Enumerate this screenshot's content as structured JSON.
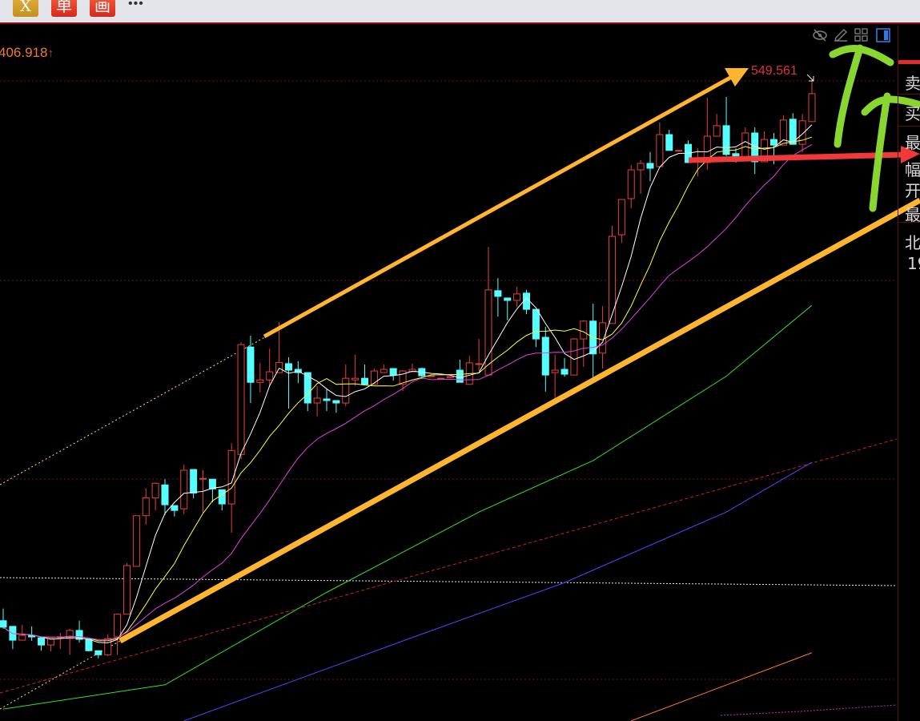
{
  "toolbar": {
    "buttons": [
      {
        "label": "X",
        "color": "#d4a02c"
      },
      {
        "label": "单",
        "color": "#e23a28"
      },
      {
        "label": "画",
        "color": "#e23a28"
      }
    ],
    "more_label": "•••"
  },
  "chart": {
    "low_label": "406.918",
    "low_arrow": "↑",
    "high_label": "549.561",
    "icons": [
      "eye-slash-icon",
      "pencil-icon",
      "grid-icon",
      "panel-toggle-icon"
    ],
    "colors": {
      "up": "#e8403a",
      "down": "#54ffff",
      "ma5": "#ffffff",
      "ma10": "#ffff40",
      "ma20": "#e040e0",
      "ma_long1": "#30e030",
      "ma_long2": "#5a40ff",
      "ma_long3": "#ff7a30",
      "annotation_arrow": "#ffb52e",
      "annotation_green": "#8ad630",
      "annotation_red": "#f03a3a"
    }
  },
  "side_panel": {
    "labels": [
      "卖",
      "买",
      "最",
      "幅",
      "开",
      "最",
      "北",
      "19"
    ]
  },
  "chart_data": {
    "type": "candlestick",
    "ohlc": [
      [
        416.2,
        419.2,
        414.2,
        414.6
      ],
      [
        414.8,
        414.8,
        409.2,
        411.4
      ],
      [
        411.4,
        415.2,
        411.4,
        412.6
      ],
      [
        412.6,
        414.8,
        411.2,
        412.2
      ],
      [
        412.0,
        412.0,
        408.8,
        410.2
      ],
      [
        410.2,
        411.8,
        408.6,
        411.8
      ],
      [
        412.0,
        413.2,
        409.2,
        412.2
      ],
      [
        411.8,
        414.2,
        407.8,
        413.8
      ],
      [
        413.8,
        416.2,
        410.8,
        411.6
      ],
      [
        411.6,
        411.6,
        408.6,
        408.8
      ],
      [
        408.8,
        408.8,
        406.918,
        407.8
      ],
      [
        407.8,
        412.8,
        407.5,
        411.8
      ],
      [
        412.2,
        417.8,
        407.8,
        417.8
      ],
      [
        417.8,
        430.4,
        417.8,
        429.8
      ],
      [
        429.6,
        442.1,
        429.6,
        442.1
      ],
      [
        442.1,
        448.9,
        439.9,
        446.5
      ],
      [
        446.5,
        450.3,
        443.4,
        450.1
      ],
      [
        449.7,
        451.1,
        442.3,
        444.8
      ],
      [
        444.6,
        444.6,
        441.9,
        443.4
      ],
      [
        443.8,
        454.7,
        442.5,
        453.3
      ],
      [
        453.5,
        453.5,
        446.4,
        447.7
      ],
      [
        451.1,
        453.3,
        442.9,
        451.3
      ],
      [
        451.1,
        451.1,
        445.4,
        448.7
      ],
      [
        448.5,
        448.5,
        443.4,
        445.0
      ],
      [
        445.0,
        460.0,
        437.9,
        458.2
      ],
      [
        457.2,
        484.9,
        456.1,
        484.3
      ],
      [
        483.7,
        486.5,
        469.9,
        475.0
      ],
      [
        475.0,
        479.8,
        472.5,
        475.6
      ],
      [
        475.6,
        483.3,
        474.1,
        477.6
      ],
      [
        477.4,
        489.9,
        477.4,
        479.9
      ],
      [
        479.6,
        481.2,
        468.5,
        478.0
      ],
      [
        478.2,
        480.2,
        474.8,
        477.4
      ],
      [
        477.4,
        477.4,
        467.9,
        469.9
      ],
      [
        469.9,
        474.1,
        466.6,
        471.1
      ],
      [
        470.9,
        473.5,
        467.9,
        470.5
      ],
      [
        470.5,
        470.5,
        467.5,
        469.9
      ],
      [
        469.9,
        479.4,
        469.1,
        476.0
      ],
      [
        475.6,
        481.8,
        474.1,
        476.0
      ],
      [
        476.0,
        479.4,
        474.5,
        474.5
      ],
      [
        474.5,
        478.4,
        474.5,
        477.8
      ],
      [
        477.4,
        479.4,
        477.4,
        478.2
      ],
      [
        478.4,
        478.4,
        475.4,
        476.8
      ],
      [
        474.5,
        478.0,
        472.9,
        477.8
      ],
      [
        477.6,
        479.6,
        477.6,
        478.2
      ],
      [
        478.4,
        478.6,
        475.8,
        476.6
      ],
      [
        476.6,
        476.7,
        476.5,
        476.6
      ],
      [
        476.0,
        476.1,
        475.9,
        476.0
      ],
      [
        476.4,
        476.5,
        476.3,
        476.4
      ],
      [
        478.0,
        480.6,
        475.0,
        475.0
      ],
      [
        474.5,
        481.5,
        474.5,
        479.8
      ],
      [
        479.6,
        485.7,
        477.8,
        479.6
      ],
      [
        476.8,
        508.4,
        476.8,
        497.8
      ],
      [
        497.6,
        500.7,
        491.2,
        496.2
      ],
      [
        495.8,
        495.8,
        490.3,
        495.2
      ],
      [
        495.2,
        498.6,
        493.6,
        496.8
      ],
      [
        497.0,
        497.8,
        491.8,
        493.0
      ],
      [
        493.0,
        493.0,
        483.7,
        485.7
      ],
      [
        486.1,
        488.7,
        472.7,
        476.8
      ],
      [
        477.4,
        481.8,
        470.9,
        478.0
      ],
      [
        478.2,
        481.0,
        476.4,
        477.0
      ],
      [
        476.8,
        485.9,
        476.8,
        485.7
      ],
      [
        485.7,
        490.3,
        478.8,
        490.1
      ],
      [
        490.1,
        494.4,
        475.0,
        482.0
      ],
      [
        482.2,
        493.8,
        478.4,
        489.7
      ],
      [
        489.5,
        513.6,
        489.5,
        511.0
      ],
      [
        511.4,
        520.1,
        509.4,
        520.1
      ],
      [
        520.3,
        528.6,
        517.9,
        527.4
      ],
      [
        527.4,
        529.8,
        521.5,
        529.0
      ],
      [
        529.0,
        531.8,
        524.6,
        527.8
      ],
      [
        528.2,
        539.1,
        528.2,
        536.1
      ],
      [
        536.1,
        537.3,
        532.2,
        532.2
      ],
      [
        532.2,
        532.3,
        532.1,
        532.2
      ],
      [
        533.7,
        534.7,
        529.2,
        529.2
      ],
      [
        529.4,
        532.7,
        525.8,
        529.8
      ],
      [
        529.2,
        545.2,
        527.4,
        535.7
      ],
      [
        535.7,
        541.2,
        535.7,
        538.3
      ],
      [
        538.3,
        545.4,
        530.8,
        531.2
      ],
      [
        531.4,
        532.7,
        529.2,
        530.4
      ],
      [
        529.8,
        537.9,
        529.8,
        536.5
      ],
      [
        536.5,
        537.9,
        526.4,
        529.4
      ],
      [
        529.4,
        536.9,
        529.4,
        534.9
      ],
      [
        534.9,
        536.5,
        528.8,
        533.5
      ],
      [
        533.5,
        540.9,
        533.5,
        539.7
      ],
      [
        539.9,
        541.4,
        533.7,
        533.7
      ],
      [
        533.7,
        541.2,
        531.8,
        539.5
      ],
      [
        539.3,
        549.561,
        539.3,
        546.2
      ]
    ],
    "moving_averages": [
      5,
      10,
      20
    ],
    "long_averages": [
      {
        "color": "#30e030",
        "points": [
          [
            0,
            394.4
          ],
          [
            17,
            400.4
          ],
          [
            34,
            423.2
          ],
          [
            50,
            443.0
          ],
          [
            62,
            455.7
          ],
          [
            76,
            476.5
          ],
          [
            85,
            494.0
          ]
        ]
      },
      {
        "color": "#5a40ff",
        "points": [
          [
            19,
            391.5
          ],
          [
            42,
            411.2
          ],
          [
            59,
            425.6
          ],
          [
            76,
            443.0
          ],
          [
            85,
            455.3
          ]
        ]
      },
      {
        "color": "#ff7a30",
        "points": [
          [
            66,
            391.5
          ],
          [
            85,
            408.3
          ]
        ]
      }
    ]
  }
}
